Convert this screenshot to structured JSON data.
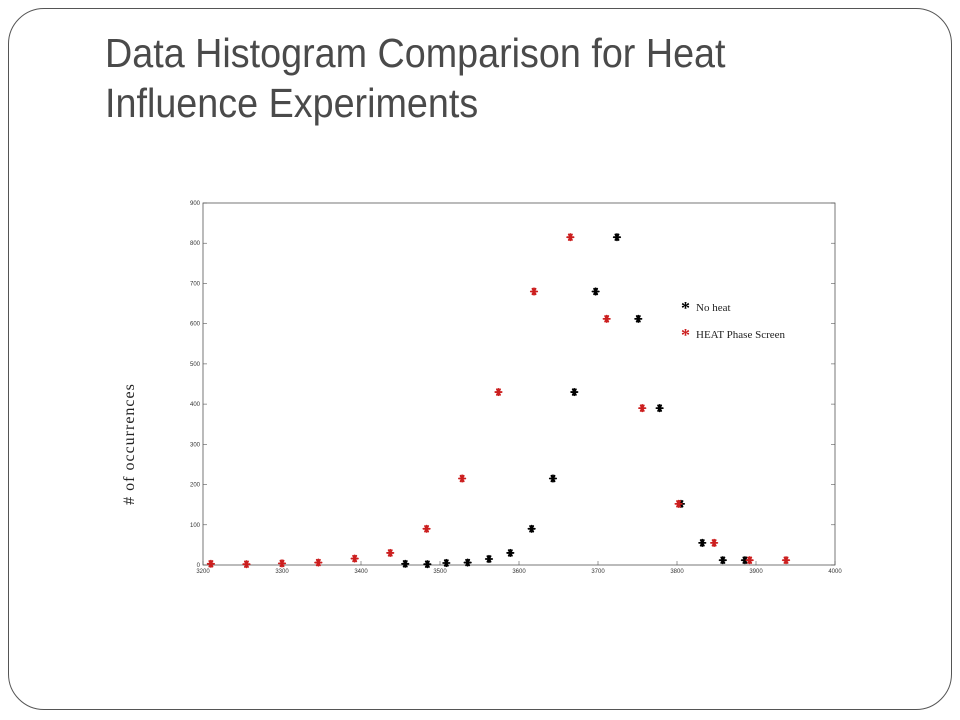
{
  "slide": {
    "title": "Data Histogram Comparison for Heat Influence Experiments"
  },
  "chart_data": {
    "type": "scatter",
    "title": "",
    "xlabel": "",
    "ylabel": "# of occurrences",
    "xlim": [
      3200,
      4000
    ],
    "ylim": [
      0,
      900
    ],
    "xticks": [
      3200,
      3300,
      3400,
      3500,
      3600,
      3700,
      3800,
      3900,
      4000
    ],
    "yticks": [
      0,
      100,
      200,
      300,
      400,
      500,
      600,
      700,
      800,
      900
    ],
    "grid": false,
    "legend_position": "top-right",
    "series": [
      {
        "name": "No heat",
        "color": "#000000",
        "marker": "asterisk",
        "points": [
          [
            3456,
            3
          ],
          [
            3484,
            2
          ],
          [
            3508,
            5
          ],
          [
            3535,
            6
          ],
          [
            3562,
            15
          ],
          [
            3589,
            30
          ],
          [
            3616,
            90
          ],
          [
            3643,
            215
          ],
          [
            3670,
            430
          ],
          [
            3697,
            680
          ],
          [
            3724,
            815
          ],
          [
            3751,
            612
          ],
          [
            3778,
            390
          ],
          [
            3805,
            152
          ],
          [
            3832,
            55
          ],
          [
            3858,
            12
          ],
          [
            3886,
            12
          ]
        ]
      },
      {
        "name": "HEAT Phase Screen",
        "color": "#cc1f1f",
        "marker": "asterisk",
        "points": [
          [
            3210,
            3
          ],
          [
            3255,
            2
          ],
          [
            3300,
            4
          ],
          [
            3346,
            6
          ],
          [
            3392,
            16
          ],
          [
            3437,
            30
          ],
          [
            3483,
            90
          ],
          [
            3528,
            215
          ],
          [
            3574,
            430
          ],
          [
            3619,
            680
          ],
          [
            3665,
            815
          ],
          [
            3711,
            612
          ],
          [
            3756,
            390
          ],
          [
            3802,
            152
          ],
          [
            3847,
            55
          ],
          [
            3892,
            12
          ],
          [
            3938,
            12
          ]
        ]
      }
    ]
  }
}
